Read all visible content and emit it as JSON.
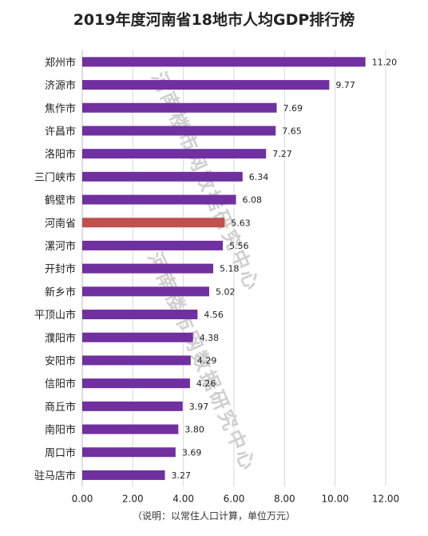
{
  "chart_data": {
    "type": "bar",
    "orientation": "horizontal",
    "title": "2019年度河南省18地市人均GDP排行榜",
    "note": "（说明：以常住人口计算，单位万元）",
    "categories": [
      "郑州市",
      "济源市",
      "焦作市",
      "许昌市",
      "洛阳市",
      "三门峡市",
      "鹤壁市",
      "河南省",
      "漯河市",
      "开封市",
      "新乡市",
      "平顶山市",
      "濮阳市",
      "安阳市",
      "信阳市",
      "商丘市",
      "南阳市",
      "周口市",
      "驻马店市"
    ],
    "values": [
      11.2,
      9.77,
      7.69,
      7.65,
      7.27,
      6.34,
      6.08,
      5.63,
      5.56,
      5.18,
      5.02,
      4.56,
      4.38,
      4.29,
      4.26,
      3.97,
      3.8,
      3.69,
      3.27
    ],
    "value_labels": [
      "11.20",
      "9.77",
      "7.69",
      "7.65",
      "7.27",
      "6.34",
      "6.08",
      "5.63",
      "5.56",
      "5.18",
      "5.02",
      "4.56",
      "4.38",
      "4.29",
      "4.26",
      "3.97",
      "3.80",
      "3.69",
      "3.27"
    ],
    "xlim": [
      0,
      12
    ],
    "x_ticks": [
      "0.00",
      "2.00",
      "4.00",
      "6.00",
      "8.00",
      "10.00",
      "12.00"
    ],
    "grid": true,
    "colors": {
      "bar": "#7030a0",
      "highlight": "#c0504d",
      "highlight_category": "河南省",
      "grid": "#d9d9d9"
    },
    "watermark": [
      "河南楼市网数据研究中心",
      "河南楼市网数据研究中心"
    ]
  }
}
